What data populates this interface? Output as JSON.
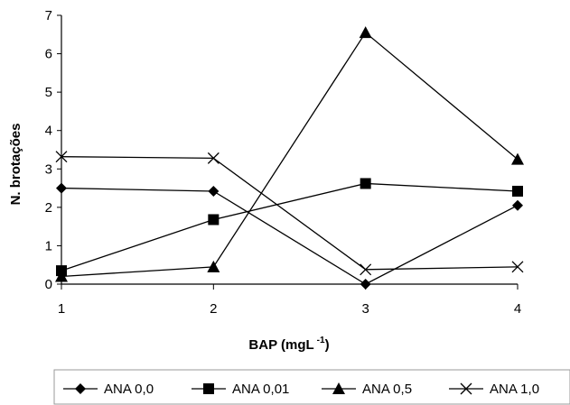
{
  "chart_data": {
    "type": "line",
    "xlabel": "BAP (mgL",
    "xlabel_sup": "-1",
    "xlabel_suffix": ")",
    "ylabel": "N. brotações",
    "x": [
      1,
      2,
      3,
      4
    ],
    "x_tick_labels": [
      "1",
      "2",
      "3",
      "4"
    ],
    "ylim": [
      0,
      7
    ],
    "y_ticks": [
      0,
      1,
      2,
      3,
      4,
      5,
      6,
      7
    ],
    "grid": false,
    "legend_position": "bottom",
    "series": [
      {
        "name": "ANA 0,0",
        "marker": "diamond",
        "values": [
          2.5,
          2.42,
          0.0,
          2.05
        ]
      },
      {
        "name": "ANA 0,01",
        "marker": "square",
        "values": [
          0.35,
          1.68,
          2.62,
          2.42
        ]
      },
      {
        "name": "ANA 0,5",
        "marker": "triangle",
        "values": [
          0.2,
          0.45,
          6.55,
          3.25
        ]
      },
      {
        "name": "ANA 1,0",
        "marker": "x",
        "values": [
          3.32,
          3.28,
          0.38,
          0.45
        ]
      }
    ]
  }
}
